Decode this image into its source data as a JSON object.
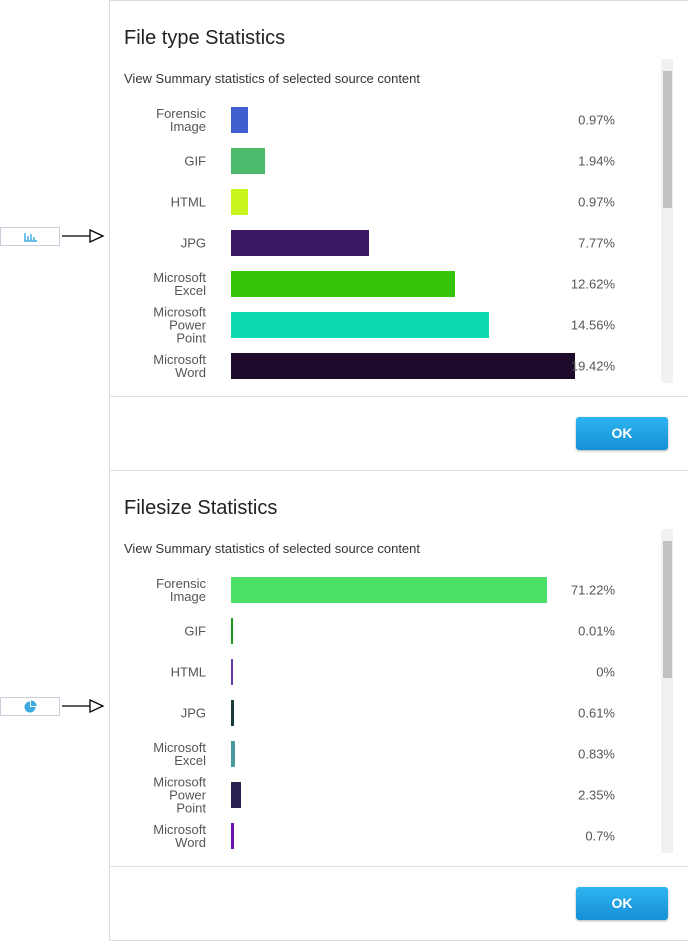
{
  "dialogs": [
    {
      "title": "File type Statistics",
      "subtitle": "View Summary statistics of selected source content",
      "button": "OK",
      "chart": {
        "type": "bar",
        "categories": [
          "Forensic Image",
          "GIF",
          "HTML",
          "JPG",
          "Microsoft Excel",
          "Microsoft Power Point",
          "Microsoft Word"
        ],
        "values": [
          0.97,
          1.94,
          0.97,
          7.77,
          12.62,
          14.56,
          19.42
        ],
        "value_labels": [
          "0.97%",
          "1.94%",
          "0.97%",
          "7.77%",
          "12.62%",
          "14.56%",
          "19.42%"
        ],
        "colors": [
          "#3f5fcf",
          "#4cbb6c",
          "#c8f51e",
          "#3b1764",
          "#36c40a",
          "#0fd9b0",
          "#1e0a2a"
        ],
        "xlim": [
          0,
          22
        ]
      }
    },
    {
      "title": "Filesize Statistics",
      "subtitle": "View Summary statistics of selected source content",
      "button": "OK",
      "chart": {
        "type": "bar",
        "categories": [
          "Forensic Image",
          "GIF",
          "HTML",
          "JPG",
          "Microsoft Excel",
          "Microsoft Power Point",
          "Microsoft Word"
        ],
        "values": [
          71.22,
          0.01,
          0,
          0.61,
          0.83,
          2.35,
          0.7
        ],
        "value_labels": [
          "71.22%",
          "0.01%",
          "0%",
          "0.61%",
          "0.83%",
          "2.35%",
          "0.7%"
        ],
        "colors": [
          "#4be068",
          "#1a9a1a",
          "#6a3ab0",
          "#173a3a",
          "#4a9aa0",
          "#2a2050",
          "#6a10b0"
        ],
        "xlim": [
          0,
          88
        ]
      }
    }
  ]
}
